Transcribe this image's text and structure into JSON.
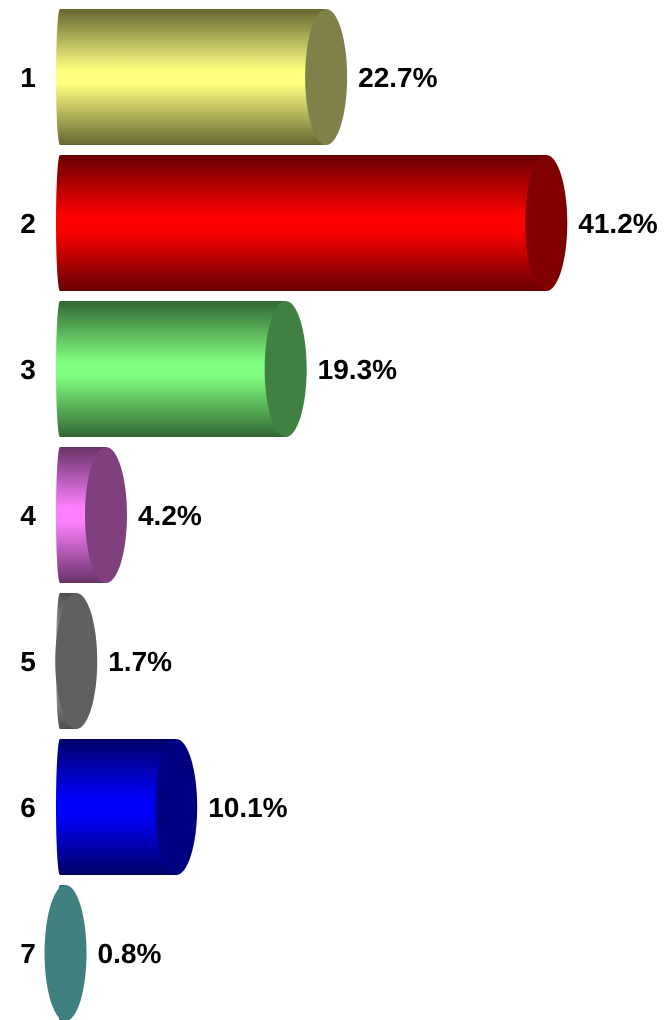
{
  "chart_data": {
    "type": "bar",
    "orientation": "horizontal",
    "style": "3d-cylinder",
    "categories": [
      "1",
      "2",
      "3",
      "4",
      "5",
      "6",
      "7"
    ],
    "values": [
      22.7,
      41.2,
      19.3,
      4.2,
      1.7,
      10.1,
      0.8
    ],
    "value_labels": [
      "22.7%",
      "41.2%",
      "19.3%",
      "4.2%",
      "1.7%",
      "10.1%",
      "0.8%"
    ],
    "unit": "%",
    "colors": [
      "#ffff80",
      "#ff0000",
      "#80ff80",
      "#ff80ff",
      "#c0c0c0",
      "#0000ff",
      "#80ffff"
    ],
    "cap_colors": [
      "#80804a",
      "#800000",
      "#408040",
      "#804080",
      "#606060",
      "#000080",
      "#408080"
    ],
    "title": "",
    "xlabel": "",
    "ylabel": "",
    "grid": false,
    "legend": "none"
  }
}
